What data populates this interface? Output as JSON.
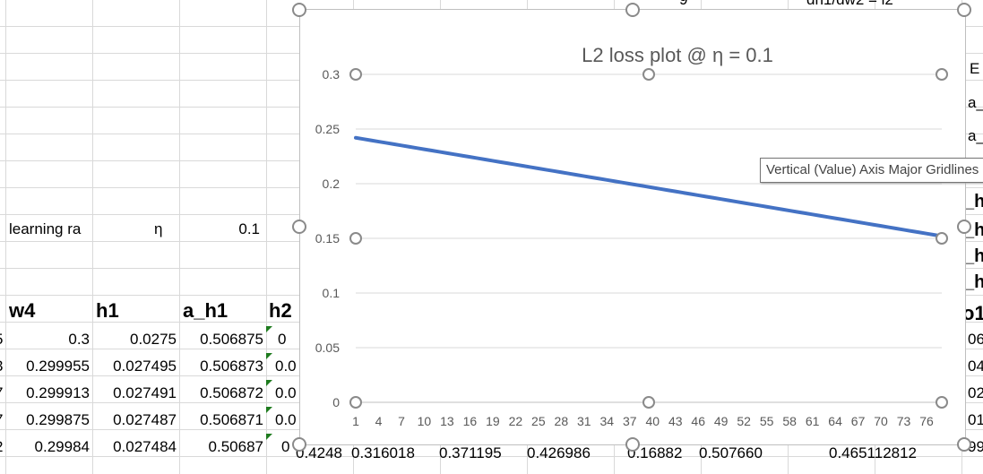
{
  "sheet": {
    "top_row_fragments": [
      "9",
      "dh1/dw2 = l2"
    ],
    "right_col_fragments": [
      "E",
      "a_",
      "a_",
      "_h",
      "_h",
      "_h",
      "_h",
      "o1",
      "06",
      "04",
      "02",
      "01",
      "99"
    ],
    "learning_rate_label": "learning ra",
    "eta_symbol": "η",
    "eta_value": "0.1",
    "headers": [
      "w4",
      "h1",
      "a_h1",
      "h2"
    ],
    "left_edge_digits": [
      "5",
      "3",
      "7",
      "7",
      "2"
    ],
    "rows": [
      {
        "w4": "0.3",
        "h1": "0.0275",
        "a_h1": "0.506875",
        "h2": "0"
      },
      {
        "w4": "0.299955",
        "h1": "0.027495",
        "a_h1": "0.506873",
        "h2": "0.0"
      },
      {
        "w4": "0.299913",
        "h1": "0.027491",
        "a_h1": "0.506872",
        "h2": "0.0"
      },
      {
        "w4": "0.299875",
        "h1": "0.027487",
        "a_h1": "0.506871",
        "h2": "0.0"
      },
      {
        "w4": "0.29984",
        "h1": "0.027484",
        "a_h1": "0.50687",
        "h2": "0"
      }
    ],
    "bottom_row_fragments": [
      "0.4248",
      "0.316018",
      "0.371195",
      "0.426986",
      "0.16882",
      "0.507660",
      "0.465112812"
    ]
  },
  "tooltip": "Vertical (Value) Axis Major Gridlines",
  "chart_data": {
    "type": "line",
    "title": "L2 loss plot @ η = 0.1",
    "xlabel": "",
    "ylabel": "",
    "ylim": [
      0,
      0.3
    ],
    "yticks": [
      "0",
      "0.05",
      "0.1",
      "0.15",
      "0.2",
      "0.25",
      "0.3"
    ],
    "xticks": [
      "1",
      "4",
      "7",
      "10",
      "13",
      "16",
      "19",
      "22",
      "25",
      "28",
      "31",
      "34",
      "37",
      "40",
      "43",
      "46",
      "49",
      "52",
      "55",
      "58",
      "61",
      "64",
      "67",
      "70",
      "73",
      "76"
    ],
    "x_count": 78,
    "y_start": 0.242,
    "y_end": 0.152,
    "grid": true,
    "series": [
      {
        "color": "#4472c4"
      }
    ]
  }
}
